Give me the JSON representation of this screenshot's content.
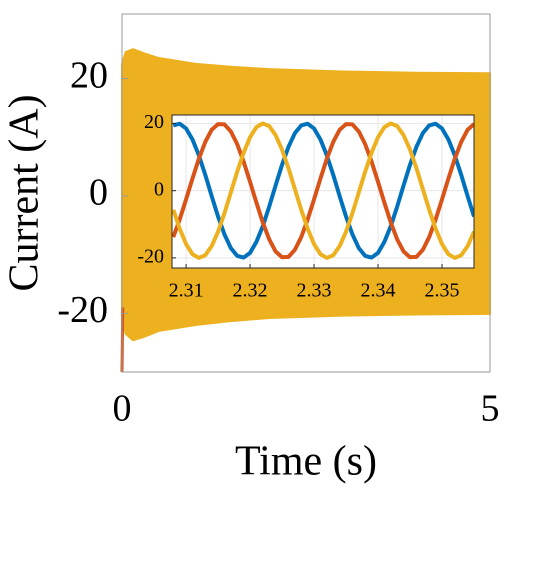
{
  "chart_data": [
    {
      "type": "band",
      "xlabel": "Time (s)",
      "ylabel": "Current (A)",
      "x": [
        0,
        0.05,
        0.15,
        0.3,
        0.5,
        1,
        1.5,
        2,
        3,
        4,
        5
      ],
      "series": [
        {
          "color": "#EDB120",
          "values": [
            22.5,
            24.5,
            25,
            24.3,
            23.5,
            22.5,
            22,
            21.6,
            21.2,
            21,
            20.9
          ],
          "lower": [
            -21,
            -23.5,
            -24.6,
            -24,
            -23,
            -22,
            -21.3,
            -20.8,
            -20.4,
            -20.2,
            -20.1
          ]
        },
        {
          "color": "#D95319",
          "x": [
            0,
            0.01
          ],
          "values": [
            -30,
            -19
          ]
        }
      ],
      "xlim": [
        0,
        5
      ],
      "ylim": [
        -30,
        31
      ],
      "xticks": [
        0,
        5
      ],
      "yticks": [
        -20,
        0,
        20
      ]
    },
    {
      "type": "line",
      "x": [
        2.308,
        2.309,
        2.31,
        2.311,
        2.312,
        2.313,
        2.314,
        2.315,
        2.316,
        2.317,
        2.318,
        2.319,
        2.32,
        2.321,
        2.322,
        2.323,
        2.324,
        2.325,
        2.326,
        2.327,
        2.328,
        2.329,
        2.33,
        2.331,
        2.332,
        2.333,
        2.334,
        2.335,
        2.336,
        2.337,
        2.338,
        2.339,
        2.34,
        2.341,
        2.342,
        2.343,
        2.344,
        2.345,
        2.346,
        2.347,
        2.348,
        2.349,
        2.35,
        2.351,
        2.352,
        2.353,
        2.354,
        2.355
      ],
      "series": [
        {
          "color": "#0072BD",
          "values": [
            19.4,
            19.9,
            18.5,
            15.2,
            10.5,
            4.7,
            -1.6,
            -7.7,
            -13,
            -17.1,
            -19.4,
            -19.9,
            -18.5,
            -15.2,
            -10.5,
            -4.7,
            1.6,
            7.7,
            13,
            17.1,
            19.4,
            19.9,
            18.5,
            15.2,
            10.5,
            4.7,
            -1.6,
            -7.7,
            -13,
            -17.1,
            -19.4,
            -19.9,
            -18.5,
            -15.2,
            -10.5,
            -4.7,
            1.6,
            7.7,
            13,
            17.1,
            19.4,
            19.9,
            18.5,
            15.2,
            10.5,
            4.7,
            -1.6,
            -7.7
          ]
        },
        {
          "color": "#D95319",
          "values": [
            -13.8,
            -8.6,
            -2.6,
            3.6,
            9.5,
            14.5,
            18.1,
            19.8,
            19.7,
            17.6,
            13.8,
            8.6,
            2.6,
            -3.6,
            -9.5,
            -14.5,
            -18.1,
            -19.8,
            -19.7,
            -17.6,
            -13.8,
            -8.6,
            -2.6,
            3.6,
            9.5,
            14.5,
            18.1,
            19.8,
            19.7,
            17.6,
            13.8,
            8.6,
            2.6,
            -3.6,
            -9.5,
            -14.5,
            -18.1,
            -19.8,
            -19.7,
            -17.6,
            -13.8,
            -8.6,
            -2.6,
            3.6,
            9.5,
            14.5,
            18.1,
            19.8
          ]
        },
        {
          "color": "#EDB120",
          "values": [
            -5.7,
            -11.3,
            -15.9,
            -18.9,
            -20,
            -19.2,
            -16.5,
            -12.2,
            -6.7,
            -0.5,
            5.7,
            11.3,
            15.9,
            18.9,
            20,
            19.2,
            16.5,
            12.2,
            6.7,
            0.5,
            -5.7,
            -11.3,
            -15.9,
            -18.9,
            -20,
            -19.2,
            -16.5,
            -12.2,
            -6.7,
            -0.5,
            5.7,
            11.3,
            15.9,
            18.9,
            20,
            19.2,
            16.5,
            12.2,
            6.7,
            0.5,
            -5.7,
            -11.3,
            -15.9,
            -18.9,
            -20,
            -19.2,
            -16.5,
            -12.2
          ]
        }
      ],
      "xlim": [
        2.3078,
        2.355
      ],
      "ylim": [
        -23,
        22.5
      ],
      "xticks": [
        2.31,
        2.32,
        2.33,
        2.34,
        2.35
      ],
      "yticks": [
        -20,
        0,
        20
      ],
      "grid": true
    }
  ]
}
